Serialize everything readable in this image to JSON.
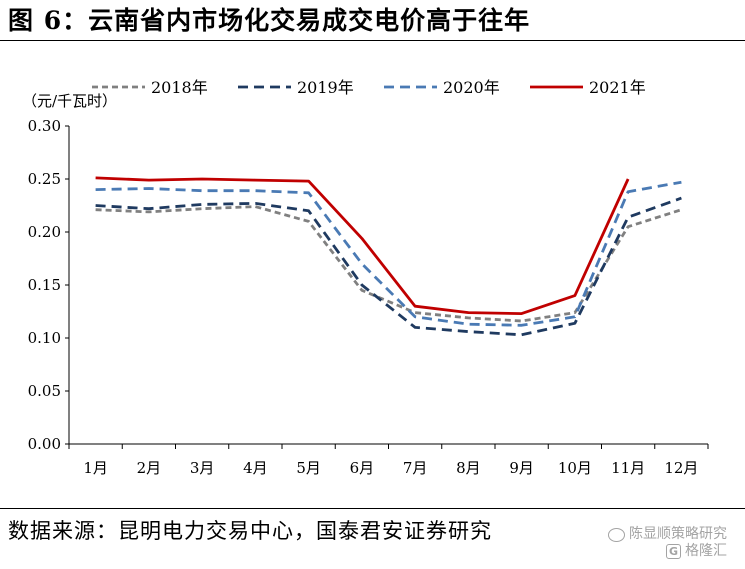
{
  "figure": {
    "title": "图 6：云南省内市场化交易成交电价高于往年",
    "source": "数据来源：昆明电力交易中心，国泰君安证券研究"
  },
  "watermark": {
    "line1": "陈显顺策略研究",
    "line2_logo": "G",
    "line2_text": "格隆汇"
  },
  "chart_data": {
    "type": "line",
    "ylabel": "（元/千瓦时）",
    "ylim": [
      0,
      0.3
    ],
    "yticks": [
      "0.00",
      "0.05",
      "0.10",
      "0.15",
      "0.20",
      "0.25",
      "0.30"
    ],
    "categories": [
      "1月",
      "2月",
      "3月",
      "4月",
      "5月",
      "6月",
      "7月",
      "8月",
      "9月",
      "10月",
      "11月",
      "12月"
    ],
    "legend_position": "top",
    "grid": false,
    "series": [
      {
        "name": "2018年",
        "color": "#808080",
        "dash": "short",
        "values": [
          0.221,
          0.219,
          0.222,
          0.224,
          0.21,
          0.145,
          0.124,
          0.119,
          0.116,
          0.124,
          0.205,
          0.221
        ]
      },
      {
        "name": "2019年",
        "color": "#1f3a60",
        "dash": "long",
        "values": [
          0.225,
          0.222,
          0.226,
          0.227,
          0.22,
          0.15,
          0.11,
          0.106,
          0.103,
          0.114,
          0.214,
          0.232
        ]
      },
      {
        "name": "2020年",
        "color": "#4a7ab4",
        "dash": "long",
        "values": [
          0.24,
          0.241,
          0.239,
          0.239,
          0.237,
          0.17,
          0.12,
          0.113,
          0.112,
          0.12,
          0.238,
          0.247
        ]
      },
      {
        "name": "2021年",
        "color": "#c00000",
        "dash": "solid",
        "values": [
          0.251,
          0.249,
          0.25,
          0.249,
          0.248,
          0.194,
          0.13,
          0.124,
          0.123,
          0.14,
          0.25,
          null
        ]
      }
    ]
  }
}
